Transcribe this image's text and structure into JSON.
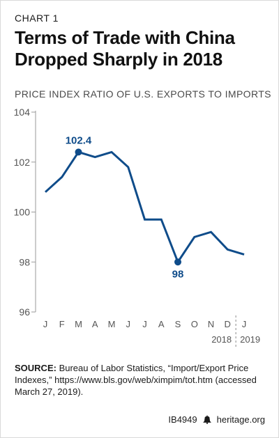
{
  "header": {
    "kicker": "CHART 1",
    "title": "Terms of Trade with China Dropped Sharply in 2018",
    "subtitle": "PRICE INDEX RATIO OF U.S. EXPORTS TO IMPORTS"
  },
  "chart_data": {
    "type": "line",
    "x": [
      "J",
      "F",
      "M",
      "A",
      "M",
      "J",
      "J",
      "A",
      "S",
      "O",
      "N",
      "D",
      "J"
    ],
    "series": [
      {
        "values": [
          100.8,
          101.4,
          102.4,
          102.2,
          102.4,
          101.8,
          99.7,
          99.7,
          98.0,
          99.0,
          99.2,
          98.5,
          98.3
        ]
      }
    ],
    "ylim": [
      96,
      104
    ],
    "yticks": [
      96,
      98,
      100,
      102,
      104
    ],
    "year_labels": [
      "2018",
      "2019"
    ],
    "annotations": [
      {
        "label": "102.4",
        "index": 2
      },
      {
        "label": "98",
        "index": 8
      }
    ],
    "grid": false,
    "line_color": "#0f4c8a"
  },
  "footer": {
    "source_label": "SOURCE:",
    "source_text": "Bureau of Labor Statistics, “Import/Export Price Indexes,” https://www.bls.gov/web/ximpim/tot.htm (accessed March 27, 2019).",
    "report_id": "IB4949",
    "site": "heritage.org"
  }
}
